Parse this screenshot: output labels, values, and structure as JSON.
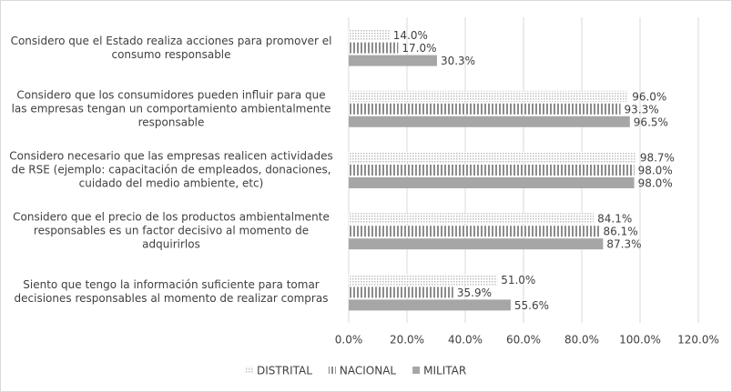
{
  "chart_data": {
    "type": "hbar",
    "categories": [
      "Considero que el Estado realiza acciones para promover el consumo responsable",
      "Considero que los consumidores pueden influir para que las empresas tengan un comportamiento ambientalmente responsable",
      "Considero necesario que las empresas realicen actividades de RSE (ejemplo: capacitación de empleados, donaciones, cuidado del medio ambiente, etc)",
      "Considero que el precio de los productos ambientalmente responsables es un factor decisivo al momento de adquirirlos",
      "Siento que tengo la información suficiente para tomar decisiones responsables al momento de realizar compras"
    ],
    "series": [
      {
        "name": "DISTRITAL",
        "color": "#bfbfbf",
        "pattern": "dots",
        "values": [
          14.0,
          96.0,
          98.7,
          84.1,
          51.0
        ],
        "value_labels": [
          "14.0%",
          "96.0%",
          "98.7%",
          "84.1%",
          "51.0%"
        ]
      },
      {
        "name": "NACIONAL",
        "color": "#8c8c8c",
        "pattern": "vertical-lines",
        "values": [
          17.0,
          93.3,
          98.0,
          86.1,
          35.9
        ],
        "value_labels": [
          "17.0%",
          "93.3%",
          "98.0%",
          "86.1%",
          "35.9%"
        ]
      },
      {
        "name": "MILITAR",
        "color": "#a6a6a6",
        "pattern": "solid",
        "values": [
          30.3,
          96.5,
          98.0,
          87.3,
          55.6
        ],
        "value_labels": [
          "30.3%",
          "96.5%",
          "98.0%",
          "87.3%",
          "55.6%"
        ]
      }
    ],
    "xlim": [
      0,
      120
    ],
    "xticks": [
      {
        "value": 0,
        "label": "0.0%"
      },
      {
        "value": 20,
        "label": "20.0%"
      },
      {
        "value": 40,
        "label": "40.0%"
      },
      {
        "value": 60,
        "label": "60.0%"
      },
      {
        "value": 80,
        "label": "80.0%"
      },
      {
        "value": 100,
        "label": "100.0%"
      },
      {
        "value": 120,
        "label": "120.0%"
      }
    ],
    "grid": true,
    "legend": "bottom"
  }
}
